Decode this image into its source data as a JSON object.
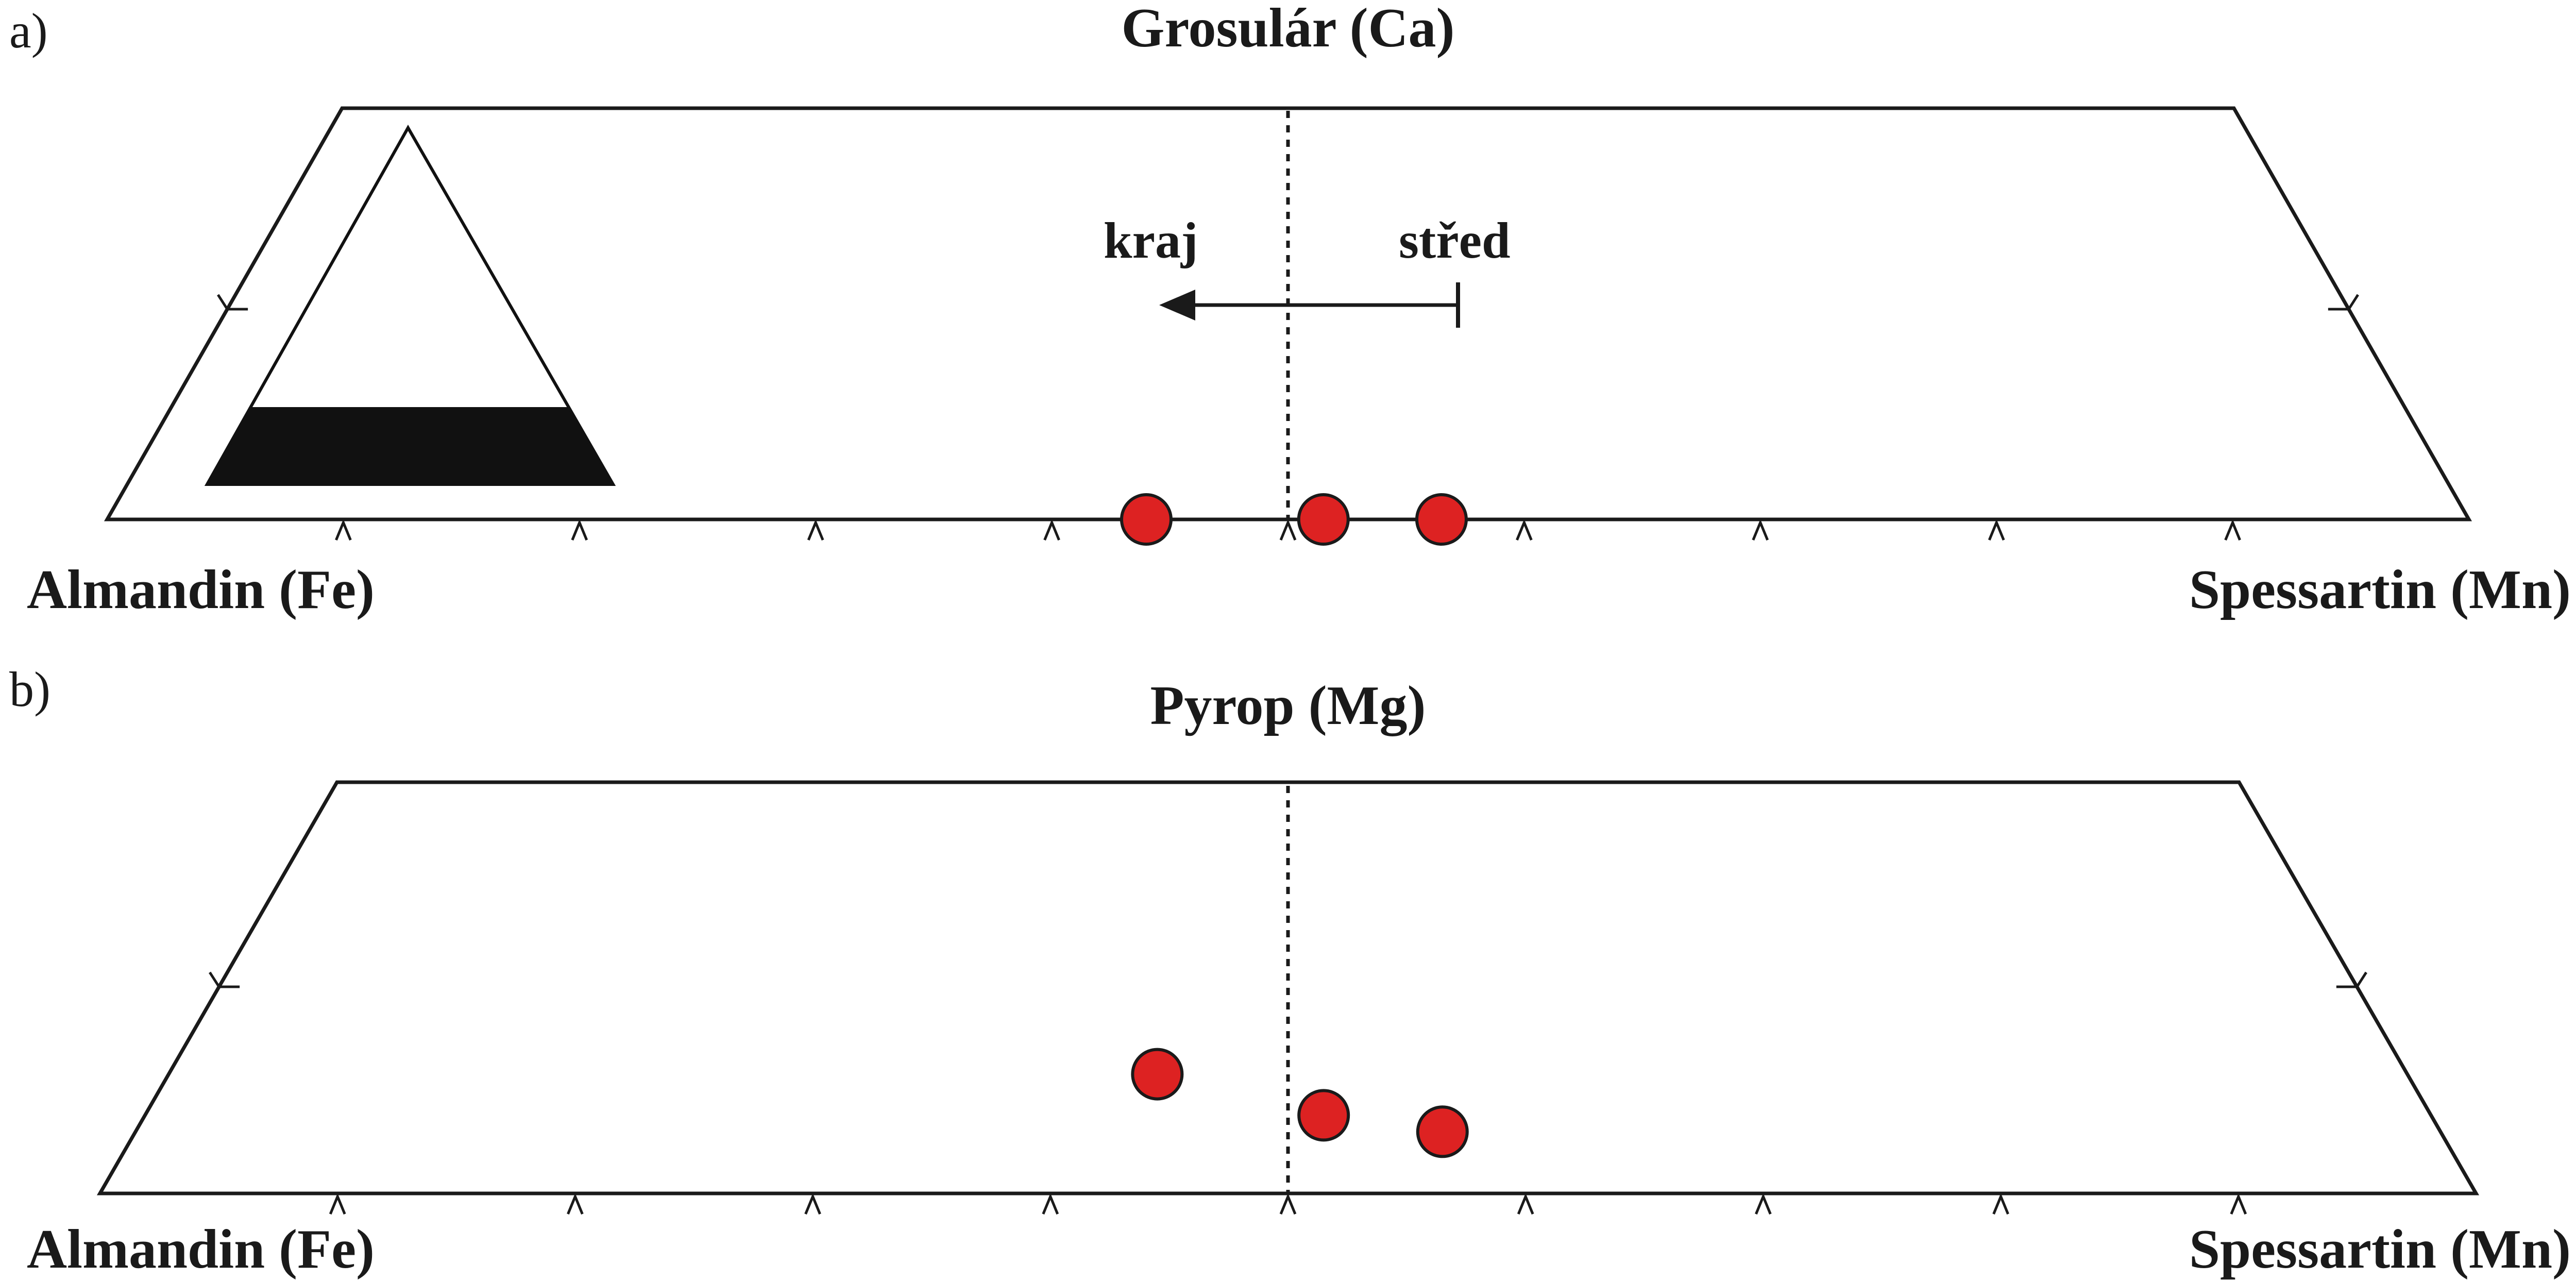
{
  "panels": [
    {
      "label": "a)",
      "apex": "Grosulár (Ca)",
      "left_endmember": "Almandin (Fe)",
      "right_endmember": "Spessartin (Mn)",
      "arrow": {
        "from_label": "střed",
        "to_label": "kraj"
      },
      "inset_triangle": true
    },
    {
      "label": "b)",
      "apex": "Pyrop (Mg)",
      "left_endmember": "Almandin (Fe)",
      "right_endmember": "Spessartin (Mn)"
    }
  ],
  "chart_data": [
    {
      "type": "scatter",
      "title": "Grosulár (Ca)",
      "xlabel_left": "Almandin (Fe)",
      "xlabel_right": "Spessartin (Mn)",
      "x_range": [
        0,
        1
      ],
      "y_range": [
        0,
        0.2
      ],
      "points": [
        {
          "x": 0.44,
          "y": 0.0
        },
        {
          "x": 0.515,
          "y": 0.0
        },
        {
          "x": 0.565,
          "y": 0.0
        }
      ],
      "point_color": "#dd2222"
    },
    {
      "type": "scatter",
      "title": "Pyrop (Mg)",
      "xlabel_left": "Almandin (Fe)",
      "xlabel_right": "Spessartin (Mn)",
      "x_range": [
        0,
        1
      ],
      "y_range": [
        0,
        0.2
      ],
      "points": [
        {
          "x": 0.445,
          "y": 0.058
        },
        {
          "x": 0.515,
          "y": 0.038
        },
        {
          "x": 0.565,
          "y": 0.03
        }
      ],
      "point_color": "#dd2222"
    }
  ]
}
